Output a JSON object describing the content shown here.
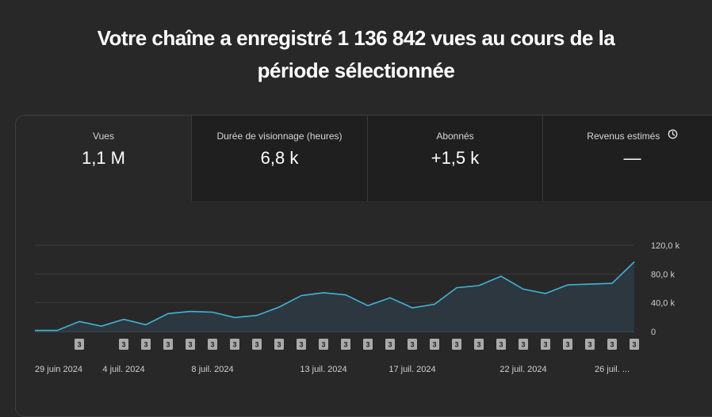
{
  "headline": {
    "line1": "Votre chaîne a enregistré 1 136 842 vues au cours de la",
    "line2": "période sélectionnée"
  },
  "metrics": [
    {
      "label": "Vues",
      "value": "1,1 M"
    },
    {
      "label": "Durée de visionnage (heures)",
      "value": "6,8 k"
    },
    {
      "label": "Abonnés",
      "value": "+1,5 k"
    },
    {
      "label": "Revenus estimés",
      "value": "—",
      "icon": "clock-icon"
    }
  ],
  "chart_data": {
    "type": "area",
    "title": "Vues",
    "ylim": [
      0,
      120000
    ],
    "y_ticks": [
      "120,0 k",
      "80,0 k",
      "40,0 k",
      "0"
    ],
    "y_tick_values": [
      120000,
      80000,
      40000,
      0
    ],
    "x_labels": [
      "29 juin 2024",
      "4 juil. 2024",
      "8 juil. 2024",
      "13 juil. 2024",
      "17 juil. 2024",
      "22 juil. 2024",
      "26 juil. ..."
    ],
    "x_label_days": [
      0,
      4,
      8,
      13,
      17,
      22,
      26
    ],
    "day_offsets": [
      0,
      1,
      2,
      3,
      4,
      5,
      6,
      7,
      8,
      9,
      10,
      11,
      12,
      13,
      14,
      15,
      16,
      17,
      18,
      19,
      20,
      21,
      22,
      23,
      24,
      25,
      26,
      27
    ],
    "values": [
      1500,
      1500,
      14000,
      7500,
      17000,
      9500,
      25000,
      28000,
      27000,
      19500,
      22500,
      34000,
      50000,
      54000,
      51000,
      36000,
      47000,
      33000,
      38000,
      61000,
      64000,
      77000,
      59000,
      53000,
      65000,
      66000,
      67000,
      97000
    ],
    "badge_label": "3",
    "badge_days": [
      2,
      4,
      5,
      6,
      7,
      8,
      9,
      10,
      11,
      12,
      13,
      14,
      15,
      16,
      17,
      18,
      19,
      20,
      21,
      22,
      23,
      24,
      25,
      26,
      27
    ],
    "line_color": "#41b4d9"
  }
}
